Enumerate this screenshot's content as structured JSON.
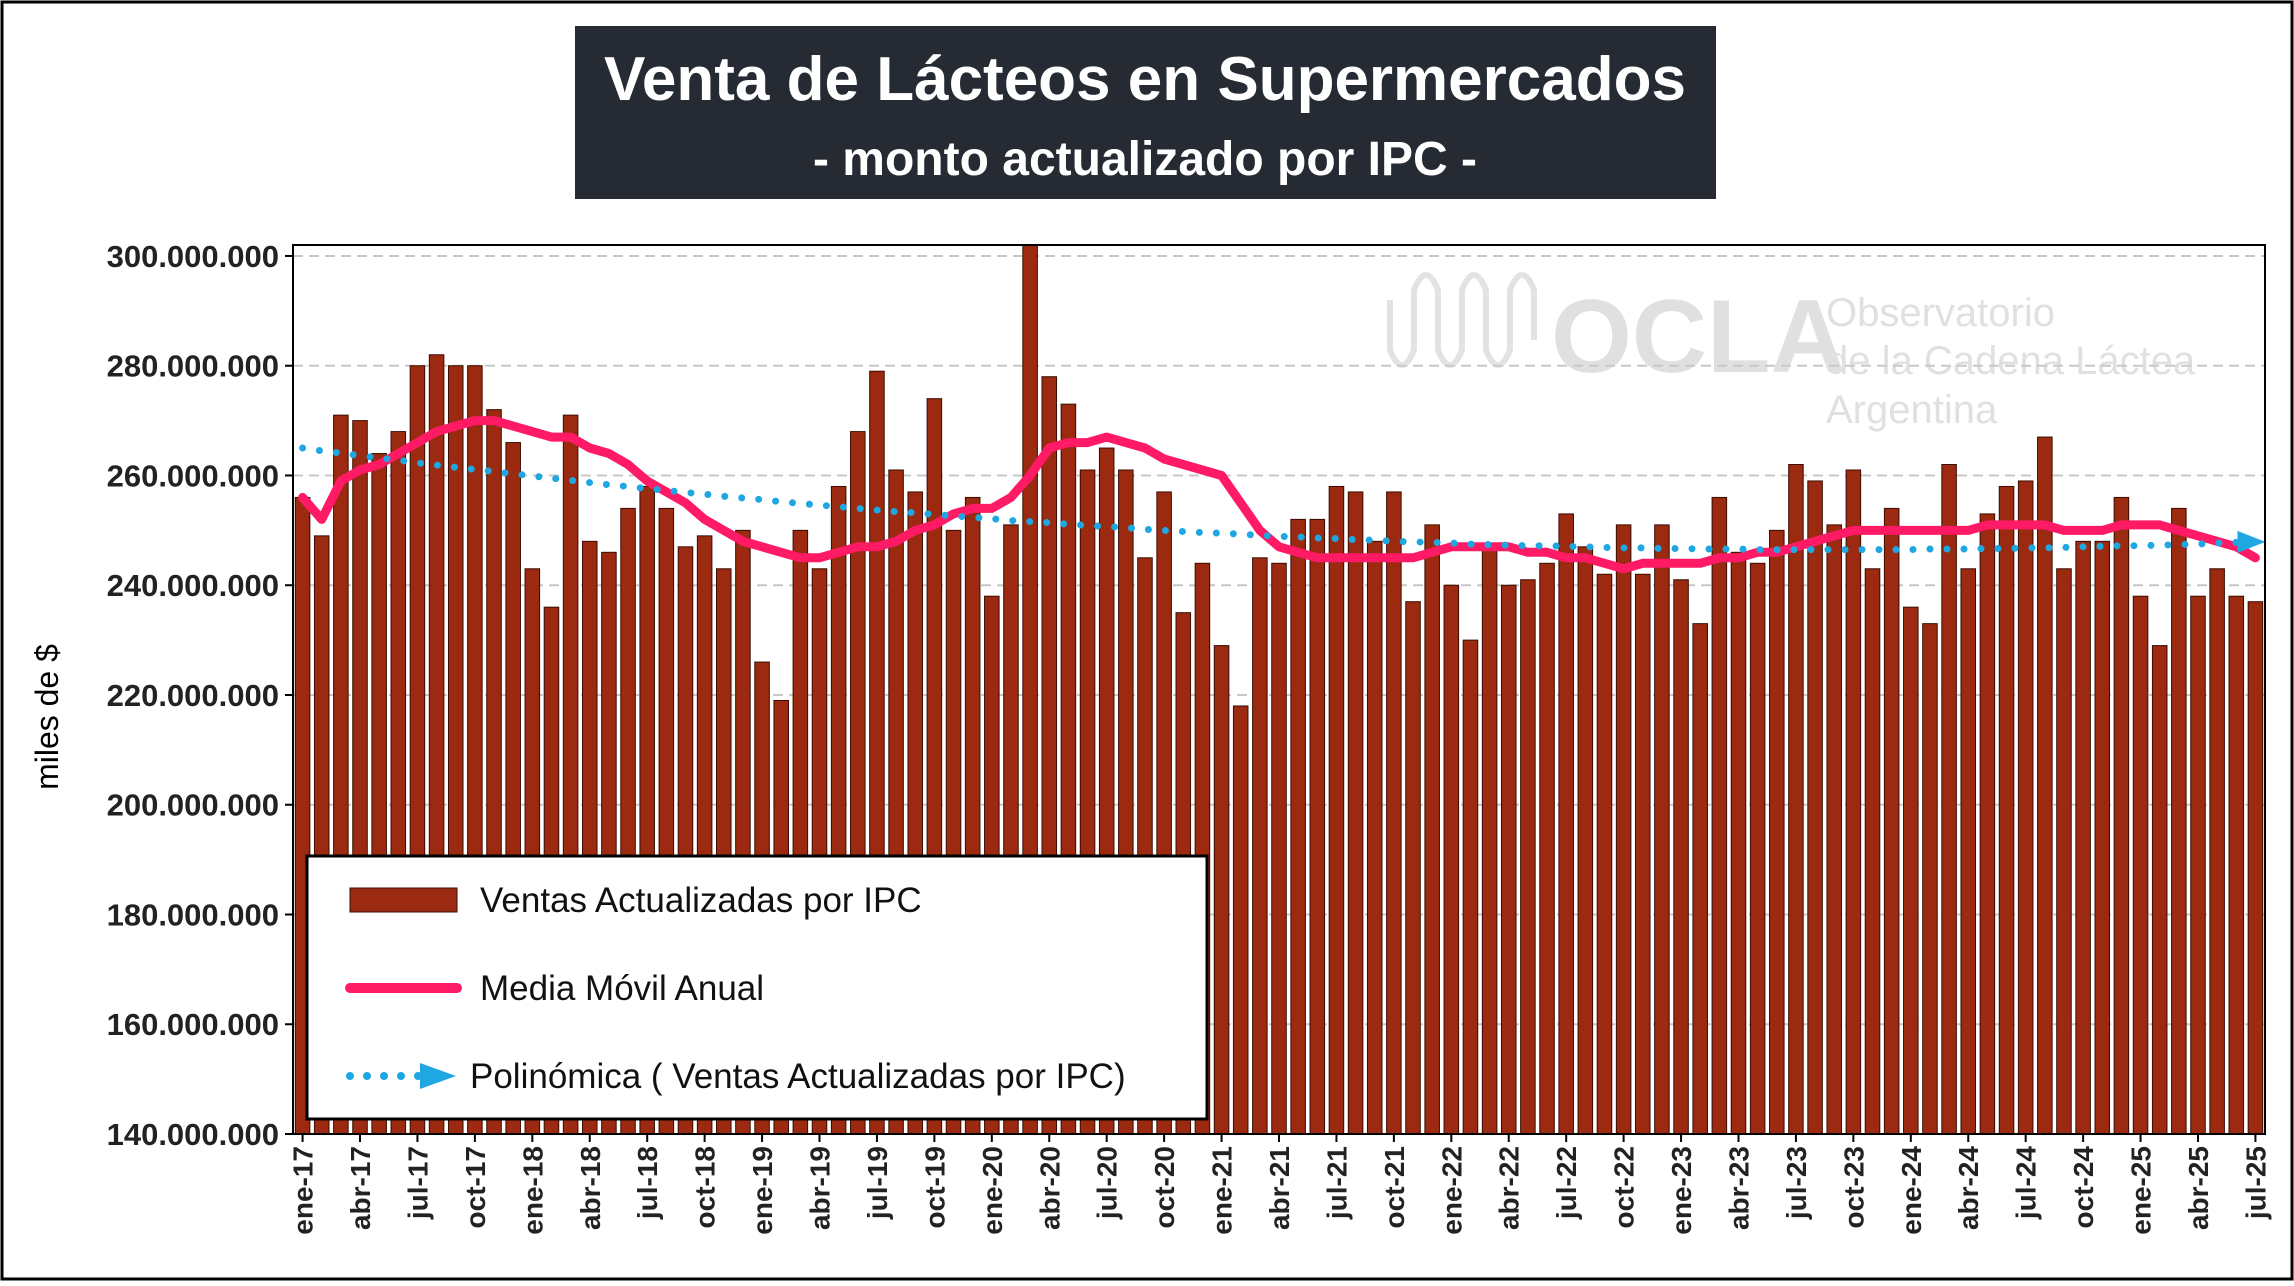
{
  "chart_data": {
    "type": "bar",
    "title": "Venta de Lácteos en Supermercados",
    "subtitle": "- monto actualizado por IPC -",
    "y_label": "miles de $",
    "annotations": [
      "OCLA",
      "Observatorio",
      "de la Cadena Láctea",
      "Argentina"
    ],
    "categories": [
      "ene-17",
      null,
      null,
      "abr-17",
      null,
      null,
      "jul-17",
      null,
      null,
      "oct-17",
      null,
      null,
      "ene-18",
      null,
      null,
      "abr-18",
      null,
      null,
      "jul-18",
      null,
      null,
      "oct-18",
      null,
      null,
      "ene-19",
      null,
      null,
      "abr-19",
      null,
      null,
      "jul-19",
      null,
      null,
      "oct-19",
      null,
      null,
      "ene-20",
      null,
      null,
      "abr-20",
      null,
      null,
      "jul-20",
      null,
      null,
      "oct-20",
      null,
      null,
      "ene-21",
      null,
      null,
      "abr-21",
      null,
      null,
      "jul-21",
      null,
      null,
      "oct-21",
      null,
      null,
      "ene-22",
      null,
      null,
      "abr-22",
      null,
      null,
      "jul-22",
      null,
      null,
      "oct-22",
      null,
      null,
      "ene-23",
      null,
      null,
      "abr-23",
      null,
      null,
      "jul-23",
      null,
      null,
      "oct-23",
      null,
      null,
      "ene-24",
      null,
      null,
      "abr-24",
      null,
      null,
      "jul-24",
      null,
      null,
      "oct-24",
      null,
      null,
      "ene-25",
      null,
      null,
      "abr-25",
      null,
      null,
      "jul-25"
    ],
    "series": [
      {
        "name": "Ventas Actualizadas por IPC",
        "type": "bar",
        "color": "#9b2a10",
        "values": [
          256000000,
          249000000,
          271000000,
          270000000,
          264000000,
          268000000,
          280000000,
          282000000,
          280000000,
          280000000,
          272000000,
          266000000,
          243000000,
          236000000,
          271000000,
          248000000,
          246000000,
          254000000,
          258000000,
          254000000,
          247000000,
          249000000,
          243000000,
          250000000,
          226000000,
          219000000,
          250000000,
          243000000,
          258000000,
          268000000,
          279000000,
          261000000,
          257000000,
          274000000,
          250000000,
          256000000,
          238000000,
          251000000,
          303000000,
          278000000,
          273000000,
          261000000,
          265000000,
          261000000,
          245000000,
          257000000,
          235000000,
          244000000,
          229000000,
          218000000,
          245000000,
          244000000,
          252000000,
          252000000,
          258000000,
          257000000,
          248000000,
          257000000,
          237000000,
          251000000,
          240000000,
          230000000,
          247000000,
          240000000,
          241000000,
          244000000,
          253000000,
          247000000,
          242000000,
          251000000,
          242000000,
          251000000,
          241000000,
          233000000,
          256000000,
          246000000,
          244000000,
          250000000,
          262000000,
          259000000,
          251000000,
          261000000,
          243000000,
          254000000,
          236000000,
          233000000,
          262000000,
          243000000,
          253000000,
          258000000,
          259000000,
          267000000,
          243000000,
          248000000,
          248000000,
          256000000,
          238000000,
          229000000,
          254000000,
          238000000,
          243000000,
          238000000,
          237000000
        ]
      },
      {
        "name": "Media Móvil Anual",
        "type": "line",
        "color": "#ff1a66",
        "values": [
          256000000,
          252000000,
          259000000,
          261000000,
          262000000,
          264000000,
          266000000,
          268000000,
          269000000,
          270000000,
          270000000,
          269000000,
          268000000,
          267000000,
          267000000,
          265000000,
          264000000,
          262000000,
          259000000,
          257000000,
          255000000,
          252000000,
          250000000,
          248000000,
          247000000,
          246000000,
          245000000,
          245000000,
          246000000,
          247000000,
          247000000,
          248000000,
          250000000,
          251000000,
          253000000,
          254000000,
          254000000,
          256000000,
          260000000,
          265000000,
          266000000,
          266000000,
          267000000,
          266000000,
          265000000,
          263000000,
          262000000,
          261000000,
          260000000,
          255000000,
          250000000,
          247000000,
          246000000,
          245000000,
          245000000,
          245000000,
          245000000,
          245000000,
          245000000,
          246000000,
          247000000,
          247000000,
          247000000,
          247000000,
          246000000,
          246000000,
          245000000,
          245000000,
          244000000,
          243000000,
          244000000,
          244000000,
          244000000,
          244000000,
          245000000,
          245000000,
          246000000,
          246000000,
          247000000,
          248000000,
          249000000,
          250000000,
          250000000,
          250000000,
          250000000,
          250000000,
          250000000,
          250000000,
          251000000,
          251000000,
          251000000,
          251000000,
          250000000,
          250000000,
          250000000,
          251000000,
          251000000,
          251000000,
          250000000,
          249000000,
          248000000,
          247000000,
          245000000
        ]
      },
      {
        "name": "Polinómica ( Ventas Actualizadas por IPC)",
        "type": "line",
        "style": "dotted",
        "color": "#1ea7e1",
        "values": [
          265000000,
          264500000,
          264100000,
          263600000,
          263200000,
          262800000,
          262300000,
          261900000,
          261500000,
          261100000,
          260700000,
          260300000,
          259900000,
          259500000,
          259100000,
          258700000,
          258300000,
          258000000,
          257600000,
          257300000,
          256900000,
          256600000,
          256200000,
          255900000,
          255600000,
          255200000,
          254900000,
          254600000,
          254300000,
          254000000,
          253700000,
          253400000,
          253200000,
          252900000,
          252600000,
          252400000,
          252100000,
          251800000,
          251600000,
          251400000,
          251100000,
          250900000,
          250700000,
          250500000,
          250200000,
          250000000,
          249800000,
          249600000,
          249500000,
          249300000,
          249100000,
          248900000,
          248800000,
          248600000,
          248500000,
          248300000,
          248200000,
          248000000,
          247900000,
          247800000,
          247700000,
          247500000,
          247400000,
          247300000,
          247200000,
          247200000,
          247100000,
          247000000,
          246900000,
          246800000,
          246800000,
          246700000,
          246700000,
          246600000,
          246600000,
          246600000,
          246500000,
          246500000,
          246500000,
          246500000,
          246500000,
          246500000,
          246500000,
          246500000,
          246500000,
          246600000,
          246600000,
          246600000,
          246700000,
          246700000,
          246800000,
          246800000,
          246900000,
          247000000,
          247100000,
          247200000,
          247200000,
          247300000,
          247400000,
          247500000,
          247700000,
          247800000,
          247900000
        ]
      }
    ],
    "ylim": [
      140000000,
      302000000
    ],
    "yticks": [
      {
        "value": 140000000,
        "label": "140.000.000"
      },
      {
        "value": 160000000,
        "label": "160.000.000"
      },
      {
        "value": 180000000,
        "label": "180.000.000"
      },
      {
        "value": 200000000,
        "label": "200.000.000"
      },
      {
        "value": 220000000,
        "label": "220.000.000"
      },
      {
        "value": 240000000,
        "label": "240.000.000"
      },
      {
        "value": 260000000,
        "label": "260.000.000"
      },
      {
        "value": 280000000,
        "label": "280.000.000"
      },
      {
        "value": 300000000,
        "label": "300.000.000"
      }
    ],
    "grid": true,
    "legend": "lower left"
  }
}
